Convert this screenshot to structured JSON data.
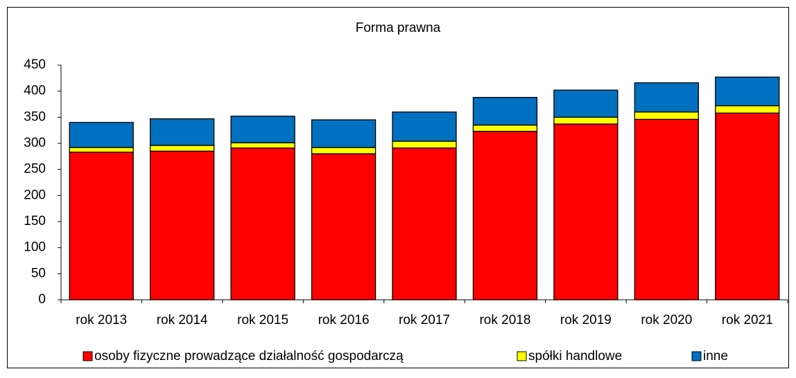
{
  "chart_data": {
    "type": "bar",
    "stacked": true,
    "title": "Forma prawna",
    "categories": [
      "rok 2013",
      "rok 2014",
      "rok 2015",
      "rok 2016",
      "rok 2017",
      "rok 2018",
      "rok 2019",
      "rok 2020",
      "rok 2021"
    ],
    "series": [
      {
        "name": "osoby fizyczne prowadzące działalność gospodarczą",
        "color": "#ff0000",
        "values": [
          283,
          285,
          291,
          280,
          291,
          323,
          337,
          346,
          358
        ]
      },
      {
        "name": "spółki handlowe",
        "color": "#ffff00",
        "values": [
          9,
          11,
          10,
          12,
          13,
          12,
          13,
          14,
          14
        ]
      },
      {
        "name": "inne",
        "color": "#0070c0",
        "values": [
          48,
          51,
          51,
          53,
          56,
          53,
          52,
          56,
          55
        ]
      }
    ],
    "ylim": [
      0,
      450
    ],
    "yticks": [
      0,
      50,
      100,
      150,
      200,
      250,
      300,
      350,
      400,
      450
    ],
    "legend": "bottom"
  }
}
